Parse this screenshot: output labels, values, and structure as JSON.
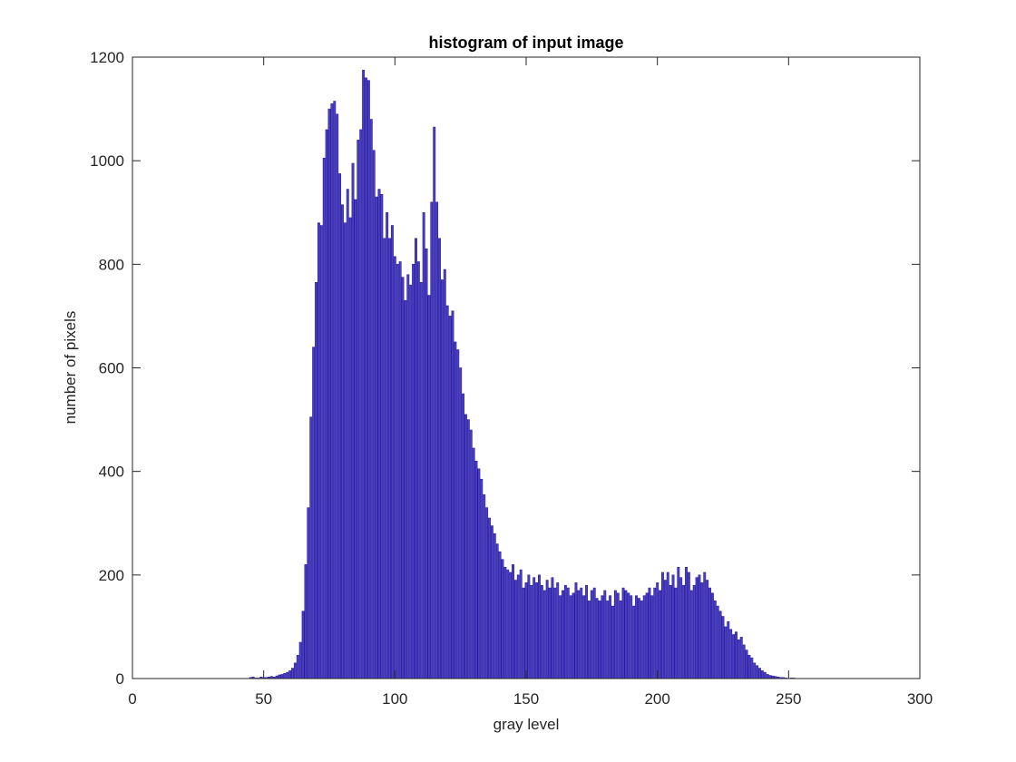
{
  "chart_data": {
    "type": "bar",
    "title": "histogram of input image",
    "xlabel": "gray level",
    "ylabel": "number of pixels",
    "color": "#4a3fc2",
    "edgecolor": "#2a1e9e",
    "xlim": [
      0,
      300
    ],
    "xticks": [
      0,
      50,
      100,
      150,
      200,
      250,
      300
    ],
    "ylim": [
      0,
      1200
    ],
    "yticks": [
      0,
      200,
      400,
      600,
      800,
      1000,
      1200
    ],
    "box": true,
    "x": [
      44,
      45,
      46,
      47,
      48,
      49,
      50,
      51,
      52,
      53,
      54,
      55,
      56,
      57,
      58,
      59,
      60,
      61,
      62,
      63,
      64,
      65,
      66,
      67,
      68,
      69,
      70,
      71,
      72,
      73,
      74,
      75,
      76,
      77,
      78,
      79,
      80,
      81,
      82,
      83,
      84,
      85,
      86,
      87,
      88,
      89,
      90,
      91,
      92,
      93,
      94,
      95,
      96,
      97,
      98,
      99,
      100,
      101,
      102,
      103,
      104,
      105,
      106,
      107,
      108,
      109,
      110,
      111,
      112,
      113,
      114,
      115,
      116,
      117,
      118,
      119,
      120,
      121,
      122,
      123,
      124,
      125,
      126,
      127,
      128,
      129,
      130,
      131,
      132,
      133,
      134,
      135,
      136,
      137,
      138,
      139,
      140,
      141,
      142,
      143,
      144,
      145,
      146,
      147,
      148,
      149,
      150,
      151,
      152,
      153,
      154,
      155,
      156,
      157,
      158,
      159,
      160,
      161,
      162,
      163,
      164,
      165,
      166,
      167,
      168,
      169,
      170,
      171,
      172,
      173,
      174,
      175,
      176,
      177,
      178,
      179,
      180,
      181,
      182,
      183,
      184,
      185,
      186,
      187,
      188,
      189,
      190,
      191,
      192,
      193,
      194,
      195,
      196,
      197,
      198,
      199,
      200,
      201,
      202,
      203,
      204,
      205,
      206,
      207,
      208,
      209,
      210,
      211,
      212,
      213,
      214,
      215,
      216,
      217,
      218,
      219,
      220,
      221,
      222,
      223,
      224,
      225,
      226,
      227,
      228,
      229,
      230,
      231,
      232,
      233,
      234,
      235,
      236,
      237,
      238,
      239,
      240,
      241,
      242,
      243,
      244,
      245,
      246,
      247,
      248,
      249,
      250,
      251,
      252,
      253,
      254,
      255
    ],
    "values": [
      0,
      2,
      3,
      1,
      1,
      3,
      2,
      2,
      3,
      4,
      3,
      5,
      7,
      8,
      10,
      12,
      15,
      20,
      30,
      45,
      70,
      130,
      220,
      330,
      505,
      640,
      765,
      880,
      875,
      1005,
      1060,
      1100,
      1110,
      1115,
      1090,
      975,
      915,
      880,
      945,
      890,
      995,
      925,
      1040,
      1060,
      1175,
      1160,
      1155,
      1080,
      1020,
      930,
      945,
      935,
      850,
      900,
      850,
      875,
      815,
      800,
      805,
      775,
      730,
      780,
      760,
      800,
      850,
      805,
      765,
      900,
      830,
      740,
      920,
      1065,
      920,
      850,
      770,
      790,
      720,
      700,
      710,
      650,
      635,
      600,
      550,
      510,
      500,
      480,
      445,
      420,
      405,
      385,
      355,
      330,
      310,
      295,
      280,
      260,
      245,
      230,
      215,
      210,
      205,
      220,
      190,
      200,
      210,
      175,
      185,
      200,
      180,
      195,
      185,
      200,
      180,
      170,
      190,
      175,
      195,
      175,
      185,
      160,
      170,
      180,
      175,
      160,
      165,
      185,
      170,
      175,
      160,
      180,
      150,
      170,
      175,
      155,
      150,
      160,
      170,
      150,
      160,
      140,
      170,
      165,
      150,
      175,
      170,
      165,
      160,
      140,
      160,
      155,
      150,
      160,
      165,
      175,
      160,
      175,
      185,
      170,
      205,
      190,
      205,
      180,
      200,
      175,
      215,
      195,
      180,
      215,
      205,
      170,
      180,
      195,
      200,
      185,
      205,
      190,
      175,
      165,
      150,
      140,
      130,
      120,
      100,
      110,
      95,
      85,
      90,
      75,
      80,
      65,
      55,
      45,
      40,
      30,
      25,
      20,
      15,
      12,
      8,
      6,
      5,
      4,
      3,
      2,
      2,
      1,
      0,
      1,
      1,
      0,
      0,
      0
    ]
  }
}
